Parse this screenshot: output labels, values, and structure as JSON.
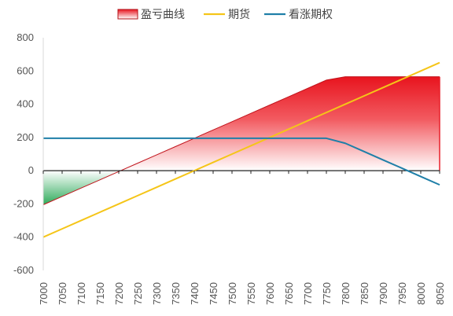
{
  "chart_data": {
    "type": "line",
    "legend": {
      "position": "top",
      "items": [
        {
          "label": "盈亏曲线",
          "style": "area"
        },
        {
          "label": "期货",
          "style": "line"
        },
        {
          "label": "看涨期权",
          "style": "line"
        }
      ]
    },
    "x": [
      7000,
      7050,
      7100,
      7150,
      7200,
      7250,
      7300,
      7350,
      7400,
      7450,
      7500,
      7550,
      7600,
      7650,
      7700,
      7750,
      7800,
      7850,
      7900,
      7950,
      8000,
      8050
    ],
    "xlim": [
      7000,
      8050
    ],
    "ylim": [
      -600,
      800
    ],
    "yticks": [
      -600,
      -400,
      -200,
      0,
      200,
      400,
      600,
      800
    ],
    "grid": false,
    "series": [
      {
        "name": "盈亏曲线",
        "type": "area",
        "color": "#e8202a",
        "values": [
          -205,
          -155,
          -105,
          -55,
          -5,
          45,
          95,
          145,
          195,
          245,
          295,
          345,
          395,
          445,
          495,
          545,
          565,
          565,
          565,
          565,
          565,
          565
        ]
      },
      {
        "name": "期货",
        "type": "line",
        "color": "#f5c518",
        "values": [
          -400,
          -350,
          -300,
          -250,
          -200,
          -150,
          -100,
          -50,
          0,
          50,
          100,
          150,
          200,
          250,
          300,
          350,
          400,
          450,
          500,
          550,
          600,
          650
        ]
      },
      {
        "name": "看涨期权",
        "type": "line",
        "color": "#1f7fa8",
        "values": [
          195,
          195,
          195,
          195,
          195,
          195,
          195,
          195,
          195,
          195,
          195,
          195,
          195,
          195,
          195,
          195,
          165,
          115,
          65,
          15,
          -35,
          -85
        ]
      }
    ],
    "colors": {
      "gain_area": "#e8202a",
      "loss_area": "#2eaa5a",
      "axis": "#d9d9d9",
      "zero_line": "#222222"
    }
  }
}
